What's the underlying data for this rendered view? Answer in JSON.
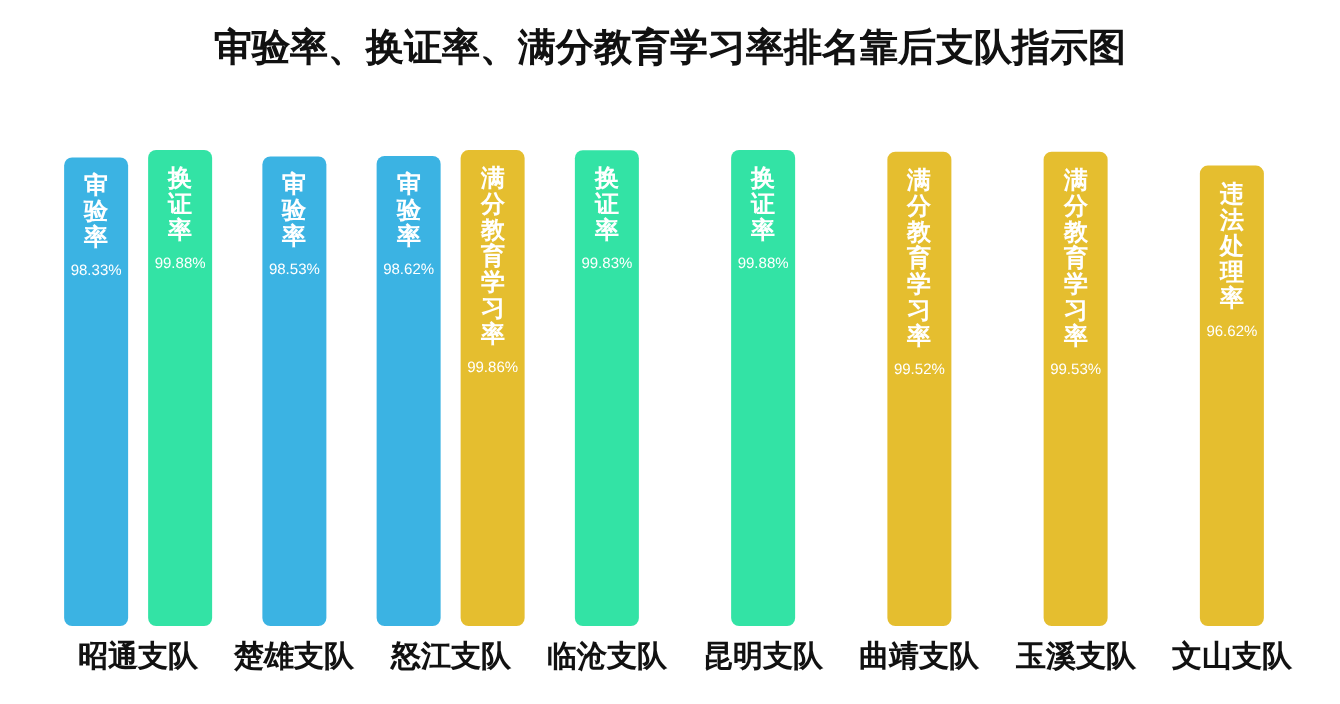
{
  "chart_data": {
    "type": "bar",
    "title": "审验率、换证率、满分教育学习率排名靠后支队指示图",
    "categories": [
      "昭通支队",
      "楚雄支队",
      "怒江支队",
      "临沧支队",
      "昆明支队",
      "曲靖支队",
      "玉溪支队",
      "文山支队"
    ],
    "series": [
      {
        "name": "审验率",
        "color": "#3bb3e3",
        "values": [
          98.33,
          98.53,
          98.62,
          null,
          null,
          null,
          null,
          null
        ],
        "value_labels": [
          "98.33%",
          "98.53%",
          "98.62%",
          null,
          null,
          null,
          null,
          null
        ]
      },
      {
        "name": "换证率",
        "color": "#33e3a5",
        "values": [
          99.88,
          null,
          null,
          99.83,
          99.88,
          null,
          null,
          null
        ],
        "value_labels": [
          "99.88%",
          null,
          null,
          "99.83%",
          "99.88%",
          null,
          null,
          null
        ]
      },
      {
        "name": "满分教育学习率",
        "color": "#e5be2f",
        "values": [
          null,
          null,
          99.86,
          null,
          null,
          99.52,
          99.53,
          null
        ],
        "value_labels": [
          null,
          null,
          "99.86%",
          null,
          null,
          "99.52%",
          "99.53%",
          null
        ]
      },
      {
        "name": "违法处理率",
        "color": "#e5be2f",
        "values": [
          null,
          null,
          null,
          null,
          null,
          null,
          null,
          96.62
        ],
        "value_labels": [
          null,
          null,
          null,
          null,
          null,
          null,
          null,
          "96.62%"
        ]
      }
    ]
  }
}
